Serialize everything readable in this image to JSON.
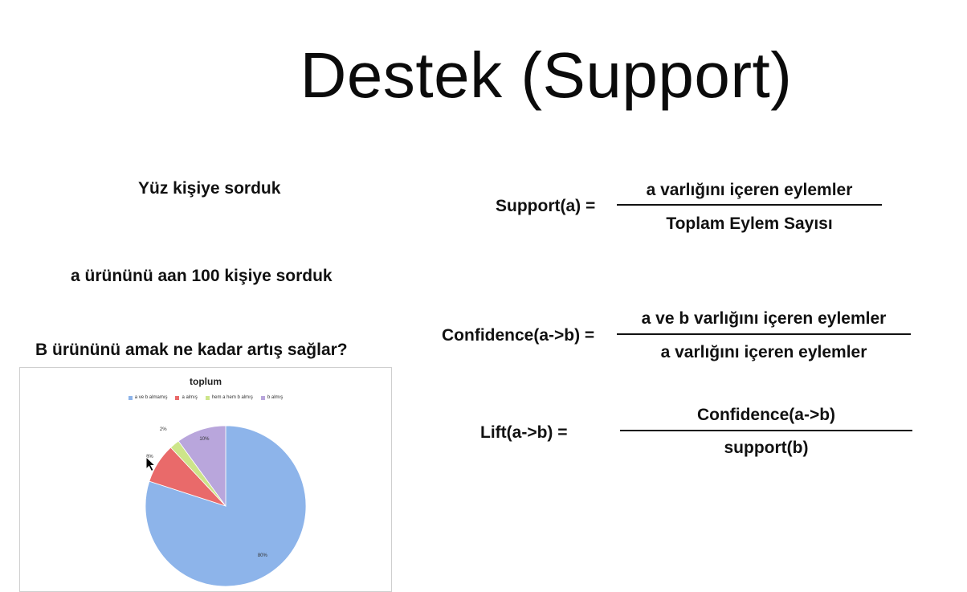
{
  "slide": {
    "title": "Destek (Support)",
    "left": {
      "line1": "Yüz kişiye sorduk",
      "line2": "a ürününü aan 100  kişiye sorduk",
      "line3": "B ürününü amak ne kadar artış sağlar?"
    },
    "formulas": {
      "support": {
        "label": "Support(a) =",
        "numerator": "a varlığını içeren eylemler",
        "denominator": "Toplam Eylem Sayısı"
      },
      "confidence": {
        "label": "Confidence(a->b) =",
        "numerator": "a ve b varlığını içeren eylemler",
        "denominator": "a varlığını içeren eylemler"
      },
      "lift": {
        "label": "Lift(a->b) =",
        "numerator": "Confidence(a->b)",
        "denominator": "support(b)"
      }
    }
  },
  "chart_data": {
    "type": "pie",
    "title": "toplum",
    "categories": [
      "a ve b almamış",
      "a almış",
      "hem a hem b almış",
      "b almış"
    ],
    "values": [
      80,
      8,
      2,
      10
    ],
    "labels": [
      "80%",
      "8%",
      "2%",
      "10%"
    ],
    "colors": [
      "#8db4ea",
      "#e96a6a",
      "#cde58a",
      "#b9a6dc"
    ],
    "legend_position": "top"
  }
}
